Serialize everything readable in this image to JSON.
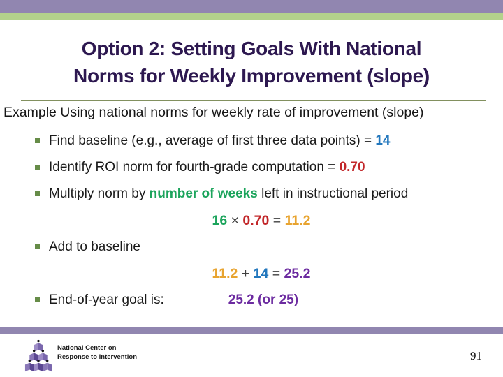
{
  "header": {
    "title_line1": "Option 2: Setting Goals With National",
    "title_line2": "Norms for Weekly Improvement (slope)"
  },
  "content": {
    "intro": "Example Using national norms for weekly rate of improvement (slope)",
    "lines": [
      {
        "type": "bullet",
        "segments": [
          {
            "t": "Find baseline (e.g., average of first three data points) = ",
            "c": "text"
          },
          {
            "t": "14",
            "c": "blue"
          }
        ]
      },
      {
        "type": "bullet",
        "segments": [
          {
            "t": "Identify ROI norm for fourth-grade computation = ",
            "c": "text"
          },
          {
            "t": "0.70",
            "c": "red"
          }
        ]
      },
      {
        "type": "bullet",
        "segments": [
          {
            "t": "Multiply norm by ",
            "c": "text"
          },
          {
            "t": "number of weeks",
            "c": "green"
          },
          {
            "t": " left in instructional period",
            "c": "text"
          }
        ]
      },
      {
        "type": "equation",
        "segments": [
          {
            "t": "16",
            "c": "green"
          },
          {
            "t": " × ",
            "c": "op"
          },
          {
            "t": "0.70",
            "c": "red"
          },
          {
            "t": " = ",
            "c": "op"
          },
          {
            "t": "11.2",
            "c": "amber"
          }
        ]
      },
      {
        "type": "bullet",
        "segments": [
          {
            "t": "Add to baseline",
            "c": "text"
          }
        ]
      },
      {
        "type": "equation",
        "segments": [
          {
            "t": "11.2",
            "c": "amber"
          },
          {
            "t": " + ",
            "c": "op"
          },
          {
            "t": "14",
            "c": "blue"
          },
          {
            "t": " = ",
            "c": "op"
          },
          {
            "t": "25.2",
            "c": "purple"
          }
        ]
      },
      {
        "type": "bullet",
        "segments": [
          {
            "t": "End-of-year goal is:",
            "c": "text"
          },
          {
            "t": "25.2 (or 25)",
            "c": "purple",
            "gap": true
          }
        ]
      }
    ]
  },
  "footer": {
    "org_line1": "National Center on",
    "org_line2": "Response to Intervention",
    "page_number": "91"
  },
  "icons": {
    "bullet_square": "small green square",
    "org_logo": "pyramid of purple figures"
  },
  "colors": {
    "top_bar": "#9186b0",
    "green_bar": "#b3d28b",
    "title": "#2d1850",
    "divider": "#82905f",
    "bullet_square": "#668c48",
    "blue": "#2277bd",
    "red": "#c2272a",
    "green": "#1ca45c",
    "amber": "#e8a430",
    "purple": "#6c2ba0",
    "logo_dark": "#5b4792",
    "logo_light": "#9d8cc6"
  }
}
